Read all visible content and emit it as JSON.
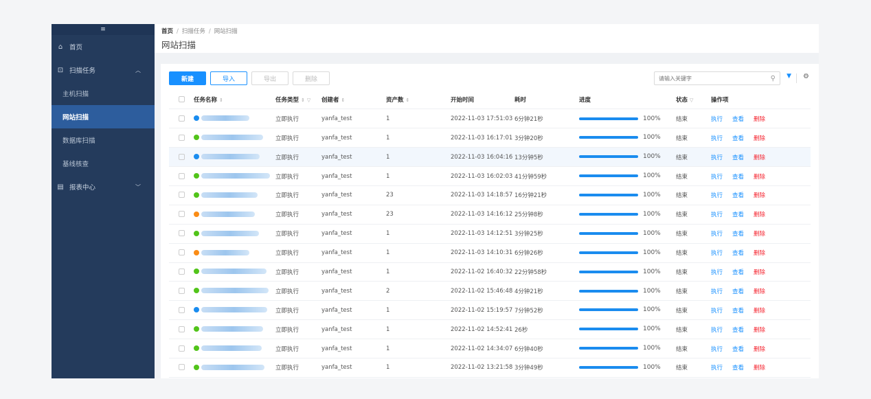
{
  "sidebar": {
    "toggle_icon": "menu-icon",
    "items": [
      {
        "label": "首页",
        "icon": "home-icon"
      },
      {
        "label": "扫描任务",
        "icon": "scan-icon"
      },
      {
        "label": "主机扫描"
      },
      {
        "label": "网站扫描"
      },
      {
        "label": "数据库扫描"
      },
      {
        "label": "基线核查"
      },
      {
        "label": "报表中心",
        "icon": "report-icon"
      }
    ]
  },
  "header": {
    "breadcrumb": [
      "首页",
      "扫描任务",
      "网站扫描"
    ],
    "title": "网站扫描"
  },
  "toolbar": {
    "new_label": "新建",
    "import_label": "导入",
    "export_label": "导出",
    "delete_label": "删除",
    "search_placeholder": "请输入关键字"
  },
  "table": {
    "columns": [
      "任务名称",
      "任务类型",
      "创建者",
      "资产数",
      "开始时间",
      "耗时",
      "进度",
      "状态",
      "操作项"
    ],
    "action_labels": {
      "run": "执行",
      "view": "查看",
      "delete": "删除"
    },
    "rows": [
      {
        "status_color": "#1a8cef",
        "type": "立即执行",
        "creator": "yanfa_test",
        "assets": "1",
        "start": "2022-11-03 17:51:03",
        "duration": "6分钟21秒",
        "progress": 1.0,
        "progress_text": "100%",
        "state": "结束"
      },
      {
        "status_color": "#52c41a",
        "type": "立即执行",
        "creator": "yanfa_test",
        "assets": "1",
        "start": "2022-11-03 16:17:01",
        "duration": "3分钟20秒",
        "progress": 1.0,
        "progress_text": "100%",
        "state": "结束"
      },
      {
        "status_color": "#1a8cef",
        "type": "立即执行",
        "creator": "yanfa_test",
        "assets": "1",
        "start": "2022-11-03 16:04:16",
        "duration": "13分钟5秒",
        "progress": 1.0,
        "progress_text": "100%",
        "state": "结束"
      },
      {
        "status_color": "#52c41a",
        "type": "立即执行",
        "creator": "yanfa_test",
        "assets": "1",
        "start": "2022-11-03 16:02:03",
        "duration": "41分钟59秒",
        "progress": 1.0,
        "progress_text": "100%",
        "state": "结束"
      },
      {
        "status_color": "#52c41a",
        "type": "立即执行",
        "creator": "yanfa_test",
        "assets": "23",
        "start": "2022-11-03 14:18:57",
        "duration": "16分钟21秒",
        "progress": 1.0,
        "progress_text": "100%",
        "state": "结束"
      },
      {
        "status_color": "#fa8c16",
        "type": "立即执行",
        "creator": "yanfa_test",
        "assets": "23",
        "start": "2022-11-03 14:16:12",
        "duration": "25分钟8秒",
        "progress": 1.0,
        "progress_text": "100%",
        "state": "结束"
      },
      {
        "status_color": "#52c41a",
        "type": "立即执行",
        "creator": "yanfa_test",
        "assets": "1",
        "start": "2022-11-03 14:12:51",
        "duration": "3分钟25秒",
        "progress": 1.0,
        "progress_text": "100%",
        "state": "结束"
      },
      {
        "status_color": "#fa8c16",
        "type": "立即执行",
        "creator": "yanfa_test",
        "assets": "1",
        "start": "2022-11-03 14:10:31",
        "duration": "6分钟26秒",
        "progress": 1.0,
        "progress_text": "100%",
        "state": "结束"
      },
      {
        "status_color": "#52c41a",
        "type": "立即执行",
        "creator": "yanfa_test",
        "assets": "1",
        "start": "2022-11-02 16:40:32",
        "duration": "22分钟58秒",
        "progress": 1.0,
        "progress_text": "100%",
        "state": "结束"
      },
      {
        "status_color": "#52c41a",
        "type": "立即执行",
        "creator": "yanfa_test",
        "assets": "2",
        "start": "2022-11-02 15:46:48",
        "duration": "4分钟21秒",
        "progress": 1.0,
        "progress_text": "100%",
        "state": "结束"
      },
      {
        "status_color": "#1a8cef",
        "type": "立即执行",
        "creator": "yanfa_test",
        "assets": "1",
        "start": "2022-11-02 15:19:57",
        "duration": "7分钟52秒",
        "progress": 1.0,
        "progress_text": "100%",
        "state": "结束"
      },
      {
        "status_color": "#52c41a",
        "type": "立即执行",
        "creator": "yanfa_test",
        "assets": "1",
        "start": "2022-11-02 14:52:41",
        "duration": "26秒",
        "progress": 1.0,
        "progress_text": "100%",
        "state": "结束"
      },
      {
        "status_color": "#52c41a",
        "type": "立即执行",
        "creator": "yanfa_test",
        "assets": "1",
        "start": "2022-11-02 14:34:07",
        "duration": "6分钟40秒",
        "progress": 1.0,
        "progress_text": "100%",
        "state": "结束"
      },
      {
        "status_color": "#52c41a",
        "type": "立即执行",
        "creator": "yanfa_test",
        "assets": "1",
        "start": "2022-11-02 13:21:58",
        "duration": "3分钟49秒",
        "progress": 1.0,
        "progress_text": "100%",
        "state": "结束"
      }
    ]
  }
}
